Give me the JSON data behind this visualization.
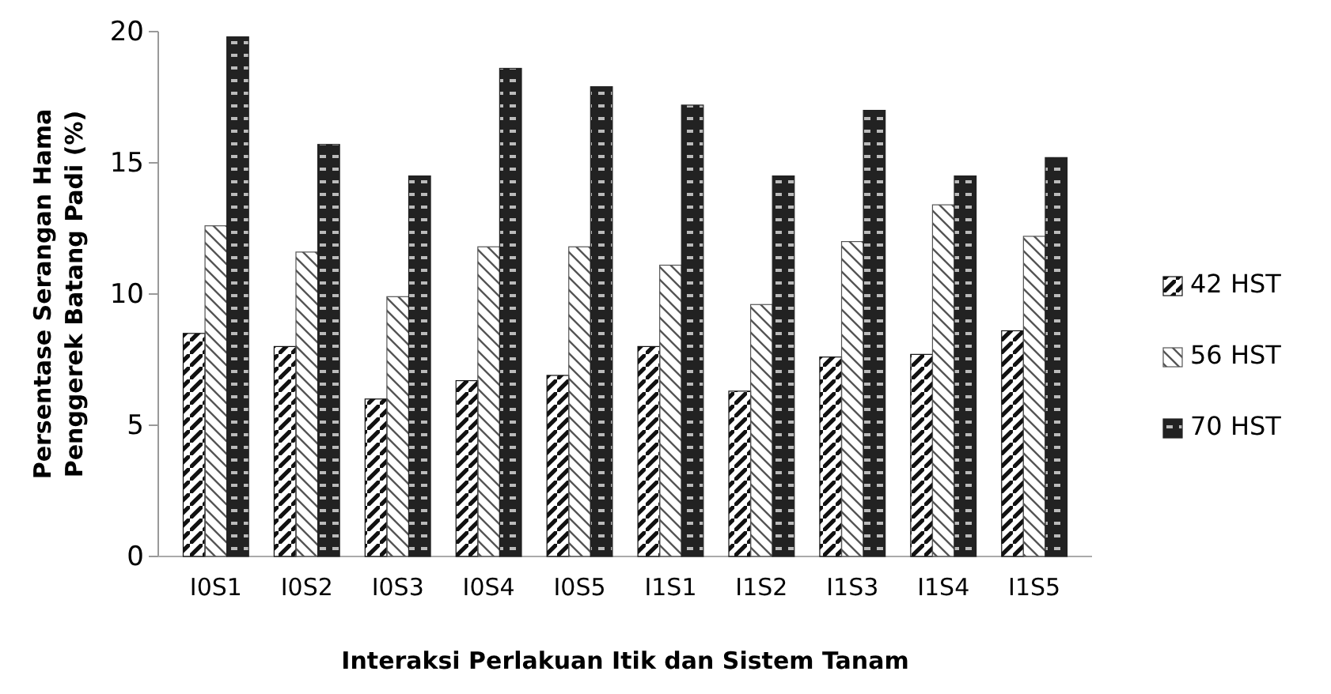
{
  "chart_data": {
    "type": "bar",
    "xlabel": "Interaksi Perlakuan Itik dan Sistem Tanam",
    "ylabel": "Persentase Serangan Hama Penggerek Batang Padi (%)",
    "categories": [
      "I0S1",
      "I0S2",
      "I0S3",
      "I0S4",
      "I0S5",
      "I1S1",
      "I1S2",
      "I1S3",
      "I1S4",
      "I1S5"
    ],
    "series": [
      {
        "name": "42 HST",
        "color": "#111111",
        "values": [
          8.5,
          8.0,
          6.0,
          6.7,
          6.9,
          8.0,
          6.3,
          7.6,
          7.7,
          8.6
        ]
      },
      {
        "name": "56 HST",
        "color": "#555555",
        "values": [
          12.6,
          11.6,
          9.9,
          11.8,
          11.8,
          11.1,
          9.6,
          12.0,
          13.4,
          12.2
        ]
      },
      {
        "name": "70 HST",
        "color": "#222222",
        "values": [
          19.8,
          15.7,
          14.5,
          18.6,
          17.9,
          17.2,
          14.5,
          17.0,
          14.5,
          15.2
        ]
      }
    ],
    "ylim": [
      0,
      20
    ],
    "yticks": [
      0,
      5,
      10,
      15,
      20
    ],
    "grid": false,
    "legend": "right"
  }
}
